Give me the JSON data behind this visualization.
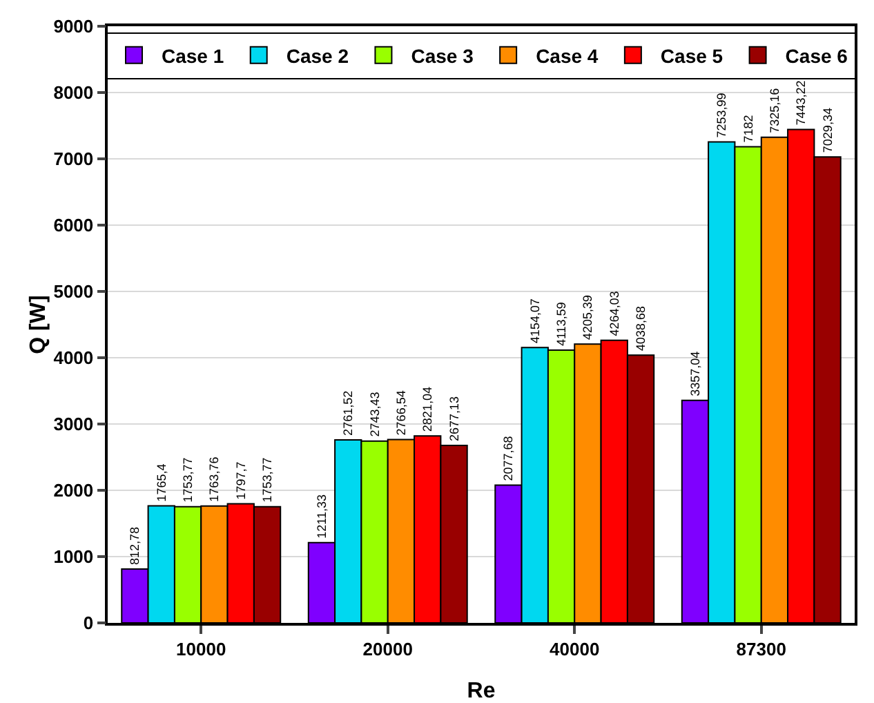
{
  "chart_data": {
    "type": "bar",
    "xlabel": "Re",
    "ylabel": "Q [W]",
    "categories": [
      "10000",
      "20000",
      "40000",
      "87300"
    ],
    "series": [
      {
        "name": "Case 1",
        "color": "#7f00ff",
        "values": [
          812.78,
          1211.33,
          2077.68,
          3357.04
        ],
        "value_labels": [
          "812,78",
          "1211,33",
          "2077,68",
          "3357,04"
        ]
      },
      {
        "name": "Case 2",
        "color": "#00d8f0",
        "values": [
          1765.4,
          2761.52,
          4154.07,
          7253.99
        ],
        "value_labels": [
          "1765,4",
          "2761,52",
          "4154,07",
          "7253,99"
        ]
      },
      {
        "name": "Case 3",
        "color": "#99ff00",
        "values": [
          1753.77,
          2743.43,
          4113.59,
          7182
        ],
        "value_labels": [
          "1753,77",
          "2743,43",
          "4113,59",
          "7182"
        ]
      },
      {
        "name": "Case 4",
        "color": "#ff8c00",
        "values": [
          1763.76,
          2766.54,
          4205.39,
          7325.16
        ],
        "value_labels": [
          "1763,76",
          "2766,54",
          "4205,39",
          "7325,16"
        ]
      },
      {
        "name": "Case 5",
        "color": "#ff0000",
        "values": [
          1797.7,
          2821.04,
          4264.03,
          7443.22
        ],
        "value_labels": [
          "1797,7",
          "2821,04",
          "4264,03",
          "7443,22"
        ]
      },
      {
        "name": "Case 6",
        "color": "#990000",
        "values": [
          1753.77,
          2677.13,
          4038.68,
          7029.34
        ],
        "value_labels": [
          "1753,77",
          "2677,13",
          "4038,68",
          "7029,34"
        ]
      }
    ],
    "ylim": [
      0,
      9000
    ],
    "yticks": [
      0,
      1000,
      2000,
      3000,
      4000,
      5000,
      6000,
      7000,
      8000,
      9000
    ],
    "grid": "y",
    "legend": "top"
  }
}
